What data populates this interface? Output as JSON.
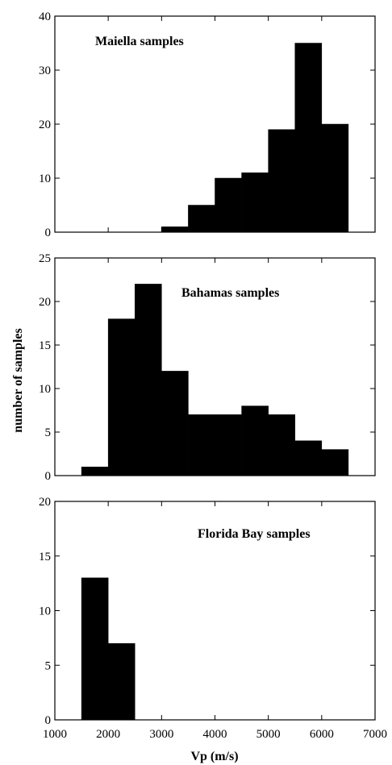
{
  "ylabel": "number of samples",
  "xlabel": "Vp (m/s)",
  "x_ticks": [
    1000,
    2000,
    3000,
    4000,
    5000,
    6000,
    7000
  ],
  "chart_data": [
    {
      "type": "bar",
      "title": "Maiella samples",
      "bin_edges": [
        1000,
        1500,
        2000,
        2500,
        3000,
        3500,
        4000,
        4500,
        5000,
        5500,
        6000,
        6500,
        7000
      ],
      "values": [
        0,
        0,
        0,
        0,
        1,
        5,
        10,
        11,
        19,
        35,
        20,
        0
      ],
      "xlim": [
        1000,
        7000
      ],
      "ylim": [
        0,
        40
      ],
      "yticks": [
        0,
        10,
        20,
        30,
        40
      ]
    },
    {
      "type": "bar",
      "title": "Bahamas samples",
      "bin_edges": [
        1000,
        1500,
        2000,
        2500,
        3000,
        3500,
        4000,
        4500,
        5000,
        5500,
        6000,
        6500,
        7000
      ],
      "values": [
        0,
        1,
        18,
        22,
        12,
        7,
        7,
        8,
        7,
        4,
        3,
        0
      ],
      "xlim": [
        1000,
        7000
      ],
      "ylim": [
        0,
        25
      ],
      "yticks": [
        0,
        5,
        10,
        15,
        20,
        25
      ]
    },
    {
      "type": "bar",
      "title": "Florida Bay samples",
      "bin_edges": [
        1000,
        1500,
        2000,
        2500,
        3000,
        3500,
        4000,
        4500,
        5000,
        5500,
        6000,
        6500,
        7000
      ],
      "values": [
        0,
        13,
        7,
        0,
        0,
        0,
        0,
        0,
        0,
        0,
        0,
        0
      ],
      "xlim": [
        1000,
        7000
      ],
      "ylim": [
        0,
        20
      ],
      "yticks": [
        0,
        5,
        10,
        15,
        20
      ]
    }
  ]
}
